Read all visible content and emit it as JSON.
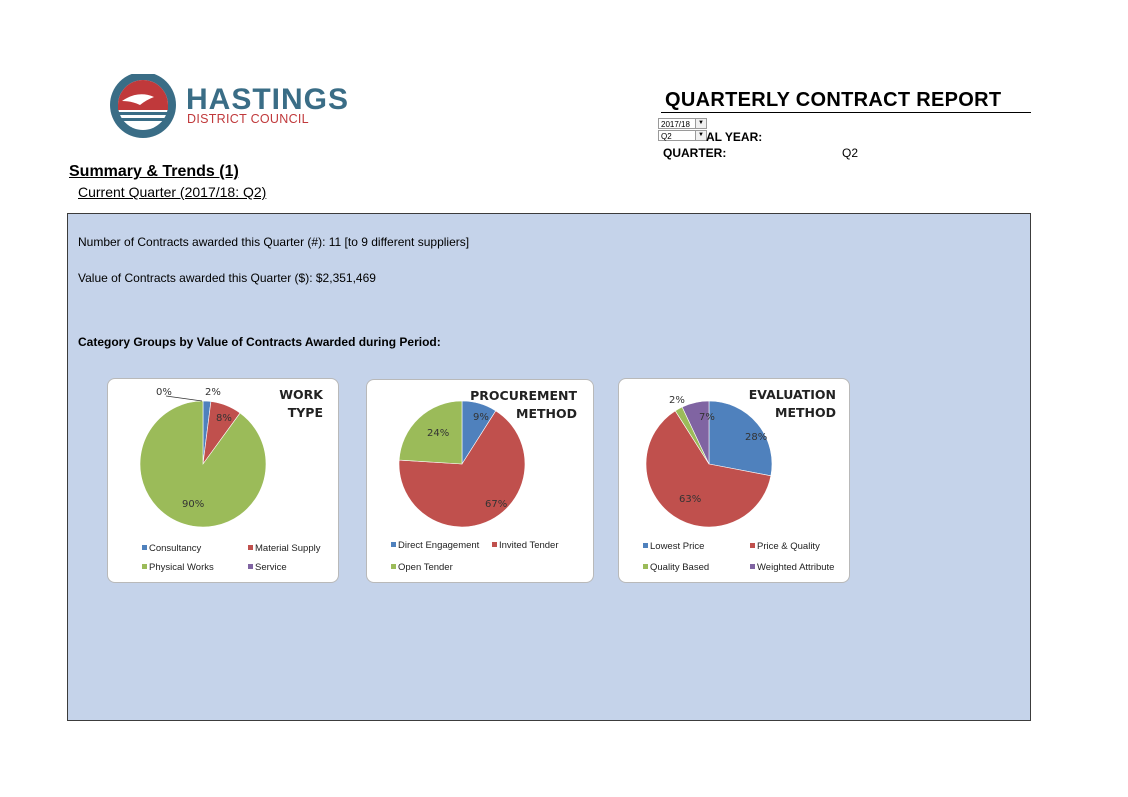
{
  "logo": {
    "word": "HASTINGS",
    "sub": "DISTRICT COUNCIL"
  },
  "header": {
    "title": "QUARTERLY CONTRACT REPORT",
    "year_select": "2017/18",
    "quarter_select": "Q2",
    "fiscal_label_visible": "AL YEAR:",
    "quarter_label": "QUARTER:",
    "quarter_value": "Q2"
  },
  "section": {
    "title": "Summary & Trends (1)",
    "subtitle": "Current Quarter (2017/18: Q2)"
  },
  "stats": {
    "count_line": "Number of Contracts awarded this Quarter (#): 11 [to 9 different suppliers]",
    "value_line": "Value of Contracts awarded this Quarter ($): $2,351,469",
    "category_heading": "Category Groups by Value of Contracts Awarded during Period:"
  },
  "colors": {
    "blue": "#4f81bd",
    "red": "#c0504d",
    "green": "#9bbb59",
    "purple": "#8064a2",
    "panel": "#c5d3ea"
  },
  "chart_data": [
    {
      "type": "pie",
      "title": [
        "WORK",
        "TYPE"
      ],
      "categories": [
        "Consultancy",
        "Material Supply",
        "Physical Works",
        "Service"
      ],
      "values": [
        2,
        8,
        90,
        0
      ],
      "labels": [
        "2%",
        "8%",
        "90%",
        "0%"
      ]
    },
    {
      "type": "pie",
      "title": [
        "PROCUREMENT",
        "METHOD"
      ],
      "categories": [
        "Direct Engagement",
        "Invited Tender",
        "Open Tender"
      ],
      "values": [
        9,
        67,
        24
      ],
      "labels": [
        "9%",
        "67%",
        "24%"
      ]
    },
    {
      "type": "pie",
      "title": [
        "EVALUATION",
        "METHOD"
      ],
      "categories": [
        "Lowest Price",
        "Price & Quality",
        "Quality Based",
        "Weighted Attribute"
      ],
      "values": [
        28,
        63,
        2,
        7
      ],
      "labels": [
        "28%",
        "63%",
        "2%",
        "7%"
      ]
    }
  ]
}
